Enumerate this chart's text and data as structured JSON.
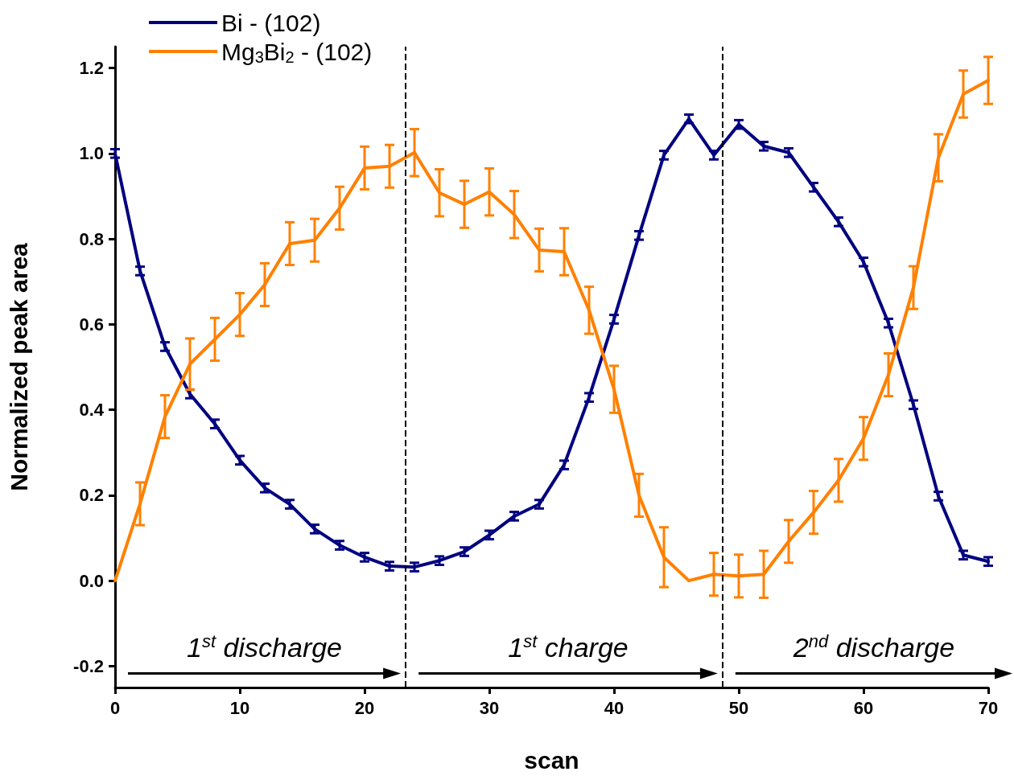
{
  "chart_data": {
    "type": "line",
    "xlabel": "scan",
    "ylabel": "Normalized peak area",
    "x": [
      0,
      2,
      4,
      6,
      8,
      10,
      12,
      14,
      16,
      18,
      20,
      22,
      24,
      26,
      28,
      30,
      32,
      34,
      36,
      38,
      40,
      42,
      44,
      46,
      48,
      50,
      52,
      54,
      56,
      58,
      60,
      62,
      64,
      66,
      68,
      70
    ],
    "series": [
      {
        "name": "Bi - (102)",
        "color": "#000080",
        "values": [
          1.0,
          0.725,
          0.548,
          0.437,
          0.367,
          0.282,
          0.217,
          0.179,
          0.121,
          0.083,
          0.055,
          0.034,
          0.032,
          0.047,
          0.068,
          0.107,
          0.151,
          0.179,
          0.271,
          0.429,
          0.612,
          0.808,
          0.996,
          1.081,
          0.996,
          1.068,
          1.017,
          1.002,
          0.921,
          0.84,
          0.746,
          0.603,
          0.412,
          0.198,
          0.06,
          0.045
        ],
        "errors": [
          0.01,
          0.01,
          0.01,
          0.01,
          0.01,
          0.01,
          0.01,
          0.01,
          0.01,
          0.01,
          0.01,
          0.01,
          0.01,
          0.01,
          0.01,
          0.01,
          0.01,
          0.01,
          0.01,
          0.01,
          0.01,
          0.01,
          0.01,
          0.01,
          0.01,
          0.01,
          0.01,
          0.01,
          0.01,
          0.01,
          0.01,
          0.01,
          0.01,
          0.01,
          0.01,
          0.01
        ]
      },
      {
        "name": "Mg$_{3}$Bi$_{2}$ - (102)",
        "color": "#ff8000",
        "values": [
          0.0,
          0.18,
          0.384,
          0.507,
          0.565,
          0.623,
          0.693,
          0.789,
          0.797,
          0.872,
          0.966,
          0.97,
          1.002,
          0.908,
          0.881,
          0.91,
          0.857,
          0.774,
          0.77,
          0.633,
          0.448,
          0.2,
          0.055,
          0.0,
          0.015,
          0.011,
          0.015,
          0.092,
          0.16,
          0.235,
          0.333,
          0.482,
          0.686,
          0.99,
          1.139,
          1.171
        ],
        "errors": [
          null,
          0.05,
          0.05,
          0.06,
          0.05,
          0.05,
          0.05,
          0.05,
          0.05,
          0.05,
          0.05,
          0.05,
          0.055,
          0.055,
          0.055,
          0.055,
          0.055,
          0.05,
          0.055,
          0.055,
          0.055,
          0.05,
          0.07,
          null,
          0.05,
          0.05,
          0.055,
          0.05,
          0.05,
          0.05,
          0.05,
          0.05,
          0.05,
          0.055,
          0.055,
          0.055
        ]
      }
    ],
    "xlim": [
      0,
      70
    ],
    "xticks": [
      0,
      10,
      20,
      30,
      40,
      50,
      60,
      70
    ],
    "ylim": [
      -0.25,
      1.25
    ],
    "yticks": [
      -0.2,
      {
        "value": 0,
        "label": "0.0"
      },
      0.2,
      0.4,
      0.6,
      0.8,
      {
        "value": 1,
        "label": "1.0"
      },
      1.2
    ],
    "ref_lines": [
      {
        "axis": "x",
        "value": 23.3,
        "label": null,
        "color": "#000000",
        "line_style": "dashed"
      },
      {
        "axis": "x",
        "value": 48.7,
        "label": null,
        "color": "#000000",
        "line_style": "dashed"
      }
    ],
    "annotations": [
      "1$^{st}$ discharge",
      "1$^{st}$ charge",
      "2$^{nd}$ discharge"
    ],
    "legend": "top left",
    "grid": false,
    "marker": "none",
    "line_style": "solid"
  }
}
